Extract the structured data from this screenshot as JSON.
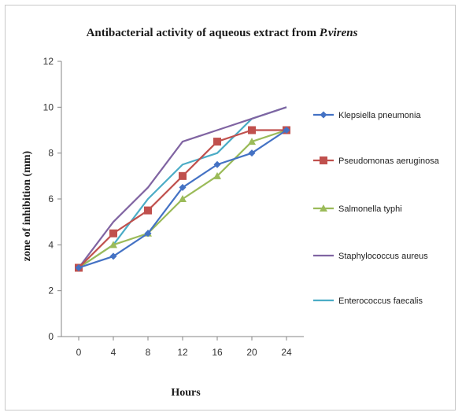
{
  "chart_data": {
    "type": "line",
    "title": "Antibacterial activity of aqueous extract from ",
    "title_italic": "P.virens",
    "xlabel": "Hours",
    "ylabel": "zone of inhibition (mm)",
    "x": [
      0,
      4,
      8,
      12,
      16,
      20,
      24
    ],
    "ylim": [
      0,
      12
    ],
    "yticks": [
      0,
      2,
      4,
      6,
      8,
      10,
      12
    ],
    "grid": false,
    "legend_position": "right",
    "series": [
      {
        "name": "Klepsiella pneumonia",
        "color": "#4472c4",
        "marker": "diamond",
        "values": [
          3,
          3.5,
          4.5,
          6.5,
          7.5,
          8,
          9
        ]
      },
      {
        "name": "Pseudomonas aeruginosa",
        "color": "#c0504d",
        "marker": "square",
        "values": [
          3,
          4.5,
          5.5,
          7,
          8.5,
          9,
          9
        ]
      },
      {
        "name": "Salmonella typhi",
        "color": "#9bbb59",
        "marker": "triangle",
        "values": [
          3,
          4,
          4.5,
          6,
          7,
          8.5,
          9
        ]
      },
      {
        "name": "Staphylococcus aureus",
        "color": "#8064a2",
        "marker": "none",
        "values": [
          3,
          5,
          6.5,
          8.5,
          9,
          9.5,
          10
        ]
      },
      {
        "name": "Enterococcus faecalis",
        "color": "#4bacc6",
        "marker": "none",
        "values": [
          3,
          4,
          6,
          7.5,
          8,
          9.5,
          10
        ]
      }
    ]
  }
}
